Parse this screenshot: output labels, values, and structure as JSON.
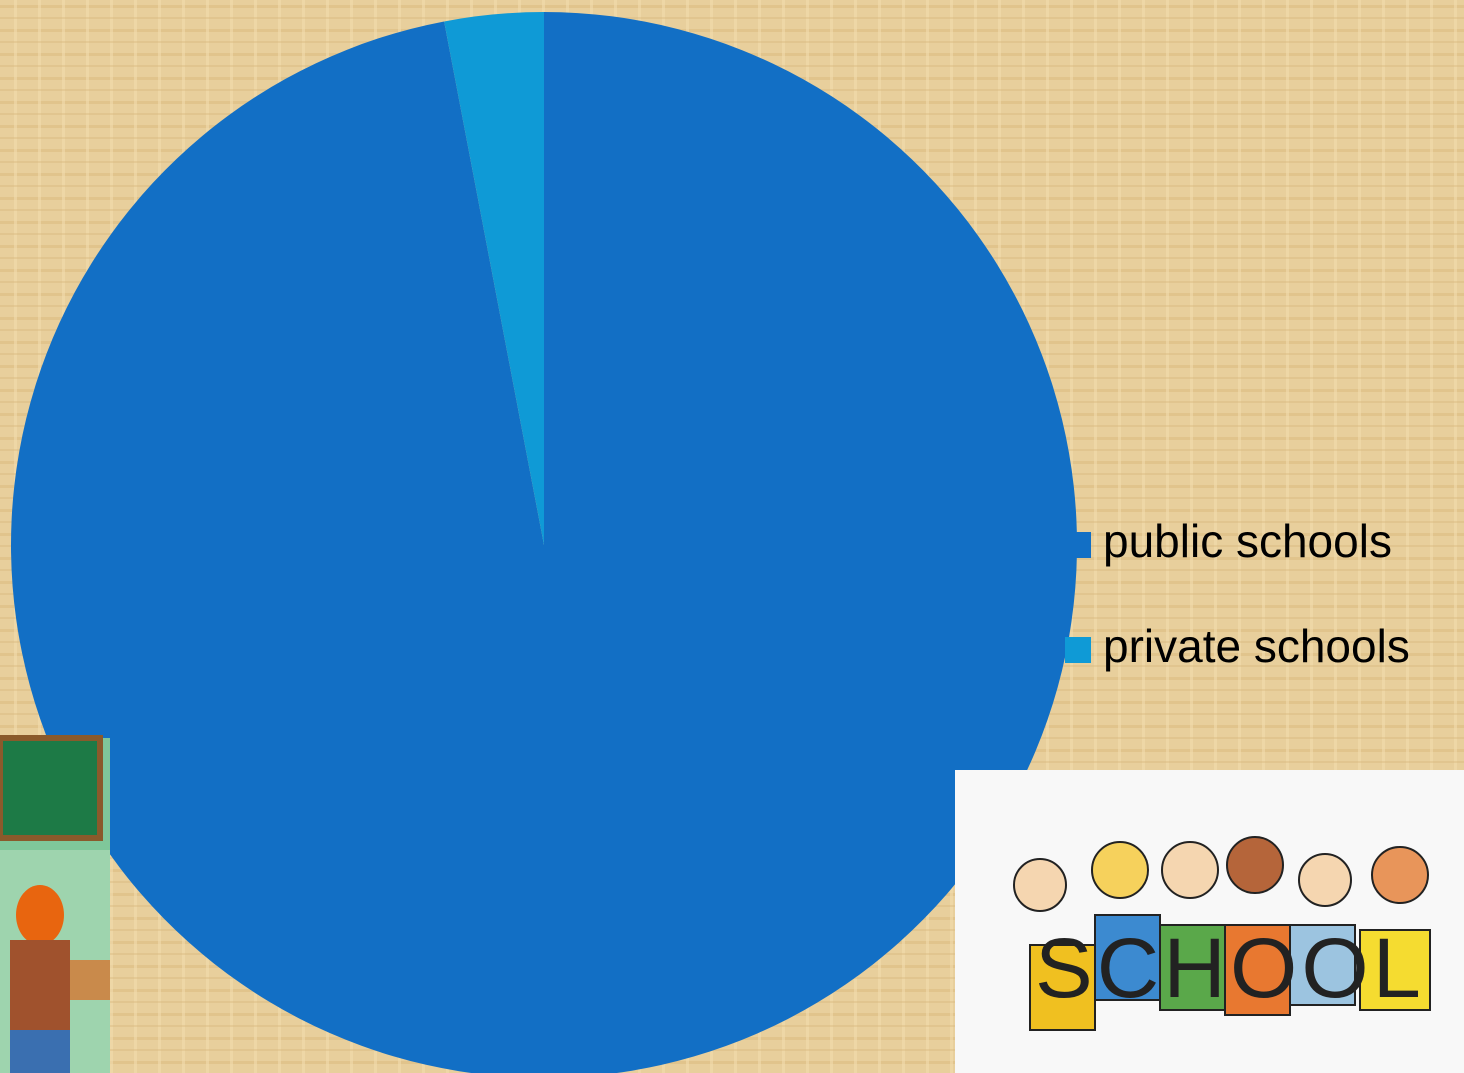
{
  "chart_data": {
    "type": "pie",
    "categories": [
      "public schools",
      "private schools"
    ],
    "values": [
      97,
      3
    ],
    "colors": [
      "#126fc5",
      "#0f9ad6"
    ],
    "legend": "right"
  },
  "illustration_text": "SCHOOL"
}
